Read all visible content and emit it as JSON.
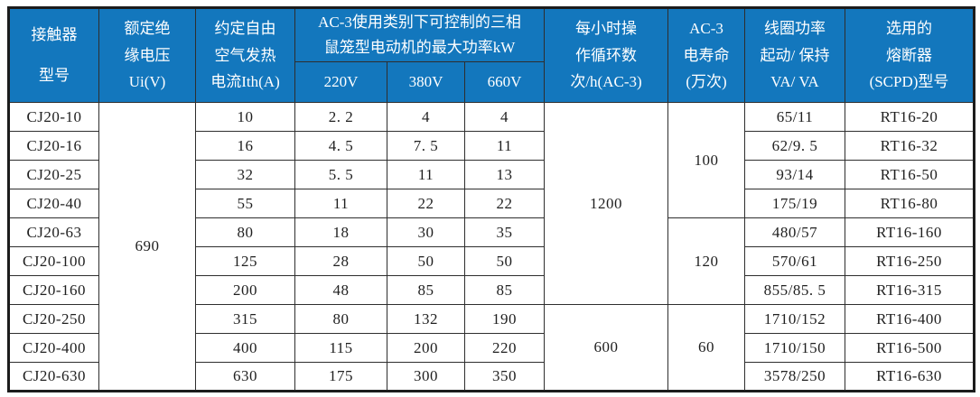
{
  "colors": {
    "header_bg": "#1377bd",
    "header_text": "#ffffff",
    "border": "#2e2e2e",
    "body_text": "#1f1f1f",
    "page_bg": "#ffffff"
  },
  "table": {
    "header": {
      "model": "接触器\n型号",
      "insulation_voltage": "额定绝\n缘电压\nUi(V)",
      "thermal_current": "约定自由\n空气发热\n电流Ith(A)",
      "ac3_power_group": "AC-3使用类别下可控制的三相\n鼠笼型电动机的最大功率kW",
      "sub_voltages": [
        "220V",
        "380V",
        "660V"
      ],
      "cycles_per_hour": "每小时操\n作循环数\n次/h(AC-3)",
      "electrical_life": "AC-3\n电寿命\n(万次)",
      "coil_power": "线圈功率\n起动/ 保持\nVA/ VA",
      "fuse_model": "选用的\n熔断器\n(SCPD)型号"
    },
    "rows": [
      [
        {
          "t": "CJ20-10"
        },
        {
          "t": "690",
          "rs": 10
        },
        {
          "t": "10"
        },
        {
          "t": "2. 2"
        },
        {
          "t": "4"
        },
        {
          "t": "4"
        },
        {
          "t": "1200",
          "rs": 7
        },
        {
          "t": "100",
          "rs": 4
        },
        {
          "t": "65/11"
        },
        {
          "t": "RT16-20"
        }
      ],
      [
        {
          "t": "CJ20-16"
        },
        {
          "t": "16"
        },
        {
          "t": "4. 5"
        },
        {
          "t": "7. 5"
        },
        {
          "t": "11"
        },
        {
          "t": "62/9. 5"
        },
        {
          "t": "RT16-32"
        }
      ],
      [
        {
          "t": "CJ20-25"
        },
        {
          "t": "32"
        },
        {
          "t": "5. 5"
        },
        {
          "t": "11"
        },
        {
          "t": "13"
        },
        {
          "t": "93/14"
        },
        {
          "t": "RT16-50"
        }
      ],
      [
        {
          "t": "CJ20-40"
        },
        {
          "t": "55"
        },
        {
          "t": "11"
        },
        {
          "t": "22"
        },
        {
          "t": "22"
        },
        {
          "t": "175/19"
        },
        {
          "t": "RT16-80"
        }
      ],
      [
        {
          "t": "CJ20-63"
        },
        {
          "t": "80"
        },
        {
          "t": "18"
        },
        {
          "t": "30"
        },
        {
          "t": "35"
        },
        {
          "t": "120",
          "rs": 3
        },
        {
          "t": "480/57"
        },
        {
          "t": "RT16-160"
        }
      ],
      [
        {
          "t": "CJ20-100"
        },
        {
          "t": "125"
        },
        {
          "t": "28"
        },
        {
          "t": "50"
        },
        {
          "t": "50"
        },
        {
          "t": "570/61"
        },
        {
          "t": "RT16-250"
        }
      ],
      [
        {
          "t": "CJ20-160"
        },
        {
          "t": "200"
        },
        {
          "t": "48"
        },
        {
          "t": "85"
        },
        {
          "t": "85"
        },
        {
          "t": "855/85. 5"
        },
        {
          "t": "RT16-315"
        }
      ],
      [
        {
          "t": "CJ20-250"
        },
        {
          "t": "315"
        },
        {
          "t": "80"
        },
        {
          "t": "132"
        },
        {
          "t": "190"
        },
        {
          "t": "600",
          "rs": 3
        },
        {
          "t": "60",
          "rs": 3
        },
        {
          "t": "1710/152"
        },
        {
          "t": "RT16-400"
        }
      ],
      [
        {
          "t": "CJ20-400"
        },
        {
          "t": "400"
        },
        {
          "t": "115"
        },
        {
          "t": "200"
        },
        {
          "t": "220"
        },
        {
          "t": "1710/150"
        },
        {
          "t": "RT16-500"
        }
      ],
      [
        {
          "t": "CJ20-630"
        },
        {
          "t": "630"
        },
        {
          "t": "175"
        },
        {
          "t": "300"
        },
        {
          "t": "350"
        },
        {
          "t": "3578/250"
        },
        {
          "t": "RT16-630"
        }
      ]
    ]
  }
}
